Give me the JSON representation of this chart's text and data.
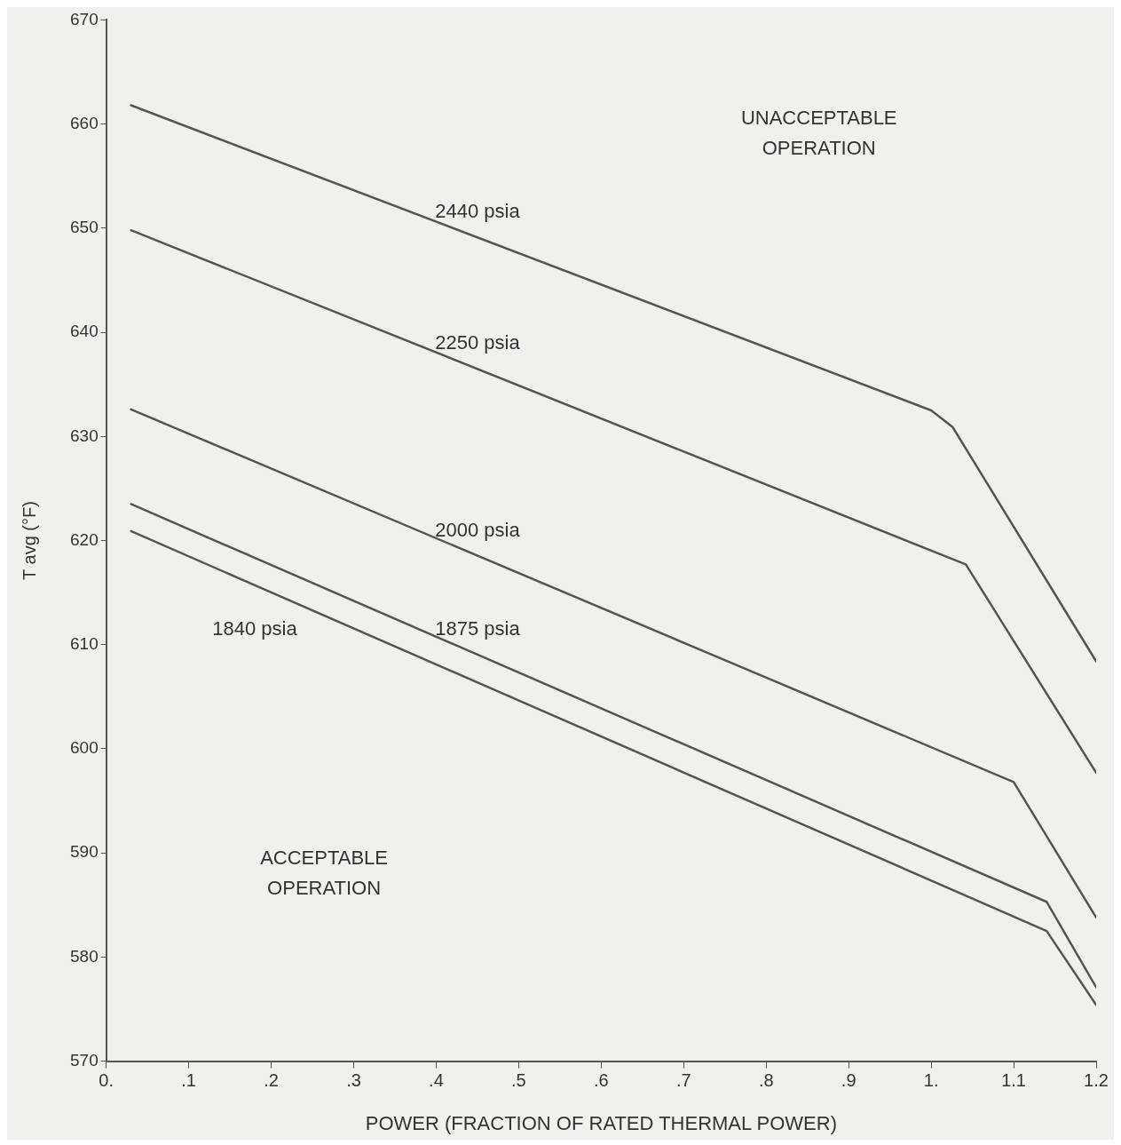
{
  "chart_data": {
    "type": "line",
    "xlabel": "POWER (FRACTION OF RATED THERMAL POWER)",
    "ylabel": "T avg (°F)",
    "xlim": [
      0,
      1.2
    ],
    "ylim": [
      570,
      670
    ],
    "xticks": [
      {
        "value": 0,
        "label": "0."
      },
      {
        "value": 0.1,
        "label": ".1"
      },
      {
        "value": 0.2,
        "label": ".2"
      },
      {
        "value": 0.3,
        "label": ".3"
      },
      {
        "value": 0.4,
        "label": ".4"
      },
      {
        "value": 0.5,
        "label": ".5"
      },
      {
        "value": 0.6,
        "label": ".6"
      },
      {
        "value": 0.7,
        "label": ".7"
      },
      {
        "value": 0.8,
        "label": ".8"
      },
      {
        "value": 0.9,
        "label": ".9"
      },
      {
        "value": 1,
        "label": "1."
      },
      {
        "value": 1.1,
        "label": "1.1"
      },
      {
        "value": 1.2,
        "label": "1.2"
      }
    ],
    "yticks": [
      570,
      580,
      590,
      600,
      610,
      620,
      630,
      640,
      650,
      660,
      670
    ],
    "grid": false,
    "legend": false,
    "marker": "none",
    "line_style": "solid",
    "series": [
      {
        "name": "2440 psia",
        "color": "#555555",
        "x": [
          0.03,
          1.0,
          1.026,
          1.2
        ],
        "values": [
          661.8,
          632.5,
          630.9,
          608.4
        ]
      },
      {
        "name": "2250 psia",
        "color": "#555555",
        "x": [
          0.03,
          1.042,
          1.2
        ],
        "values": [
          649.8,
          617.7,
          597.7
        ]
      },
      {
        "name": "2000 psia",
        "color": "#555555",
        "x": [
          0.03,
          1.1,
          1.2
        ],
        "values": [
          632.6,
          596.8,
          583.8
        ]
      },
      {
        "name": "1875 psia",
        "color": "#555555",
        "x": [
          0.03,
          1.14,
          1.2
        ],
        "values": [
          623.5,
          585.3,
          577.1
        ]
      },
      {
        "name": "1840 psia",
        "color": "#555555",
        "x": [
          0.03,
          1.14,
          1.2
        ],
        "values": [
          620.9,
          582.5,
          575.4
        ]
      }
    ],
    "annotations": [
      "UNACCEPTABLE\nOPERATION",
      "ACCEPTABLE\nOPERATION"
    ]
  }
}
